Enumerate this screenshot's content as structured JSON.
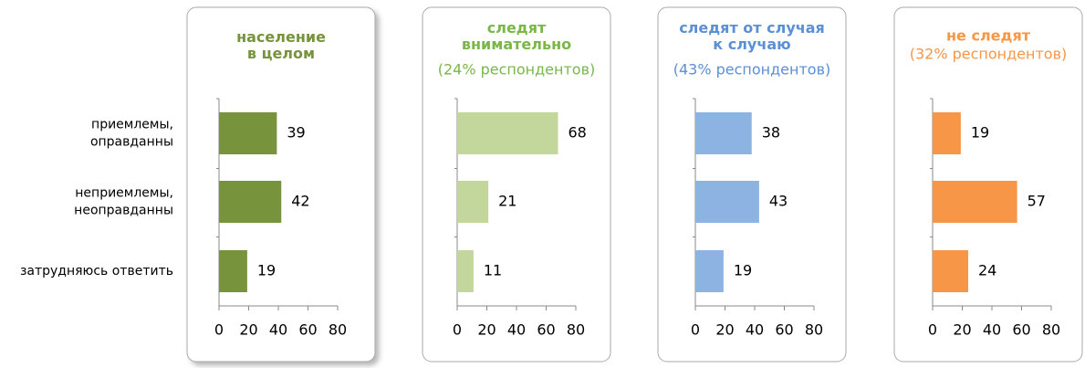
{
  "chart_data": [
    {
      "type": "bar",
      "title": "население\nв целом",
      "title_color": "#77933c",
      "categories": [
        "приемлемы,\nоправданны",
        "неприемлемы,\nнеоправданны",
        "затрудняюсь ответить"
      ],
      "values": [
        39,
        42,
        19
      ],
      "color": "#77933c",
      "xlim": [
        0,
        80
      ],
      "xticks": [
        0,
        20,
        40,
        60,
        80
      ],
      "shadow": true
    },
    {
      "type": "bar",
      "title": "следят\nвнимательно",
      "subtitle": "(24% респондентов)",
      "title_color": "#7ab648",
      "values": [
        68,
        21,
        11
      ],
      "color": "#c3d69b",
      "xlim": [
        0,
        80
      ],
      "xticks": [
        0,
        20,
        40,
        60,
        80
      ]
    },
    {
      "type": "bar",
      "title": "следят от случая\nк случаю",
      "subtitle": "(43% респондентов)",
      "title_color": "#5b8fd6",
      "values": [
        38,
        43,
        19
      ],
      "color": "#8db3e2",
      "xlim": [
        0,
        80
      ],
      "xticks": [
        0,
        20,
        40,
        60,
        80
      ]
    },
    {
      "type": "bar",
      "title": "не следят",
      "subtitle": "(32% респондентов)",
      "title_color": "#f79646",
      "values": [
        19,
        57,
        24
      ],
      "color": "#f79646",
      "xlim": [
        0,
        80
      ],
      "xticks": [
        0,
        20,
        40,
        60,
        80
      ]
    }
  ]
}
